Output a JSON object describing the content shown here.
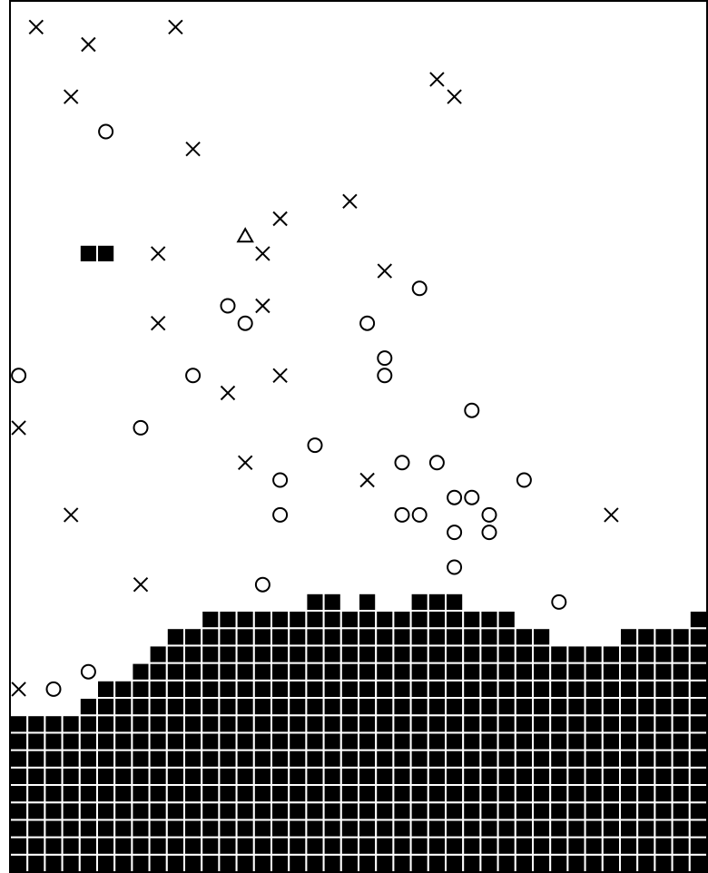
{
  "board": {
    "cols": 40,
    "rows": 50,
    "colors": {
      "background": "#ffffff",
      "ink": "#000000",
      "grid_line": "#ffffff"
    },
    "terrain_column_heights": [
      9,
      9,
      9,
      9,
      10,
      11,
      11,
      12,
      13,
      14,
      14,
      15,
      15,
      15,
      15,
      15,
      15,
      15,
      15,
      15,
      15,
      15,
      15,
      15,
      15,
      15,
      15,
      15,
      15,
      14,
      14,
      13,
      13,
      13,
      13,
      14,
      14,
      14,
      14,
      15
    ],
    "raised_blocks": [
      {
        "col": 17,
        "row": 34
      },
      {
        "col": 18,
        "row": 34
      },
      {
        "col": 20,
        "row": 34
      },
      {
        "col": 23,
        "row": 34
      },
      {
        "col": 24,
        "row": 34
      },
      {
        "col": 25,
        "row": 34
      }
    ],
    "floating_blocks": [
      {
        "col": 4,
        "row": 14
      },
      {
        "col": 5,
        "row": 14
      }
    ],
    "markers": [
      {
        "type": "x",
        "col": 1,
        "row": 1
      },
      {
        "type": "x",
        "col": 4,
        "row": 2
      },
      {
        "type": "x",
        "col": 9,
        "row": 1
      },
      {
        "type": "x",
        "col": 24,
        "row": 4
      },
      {
        "type": "x",
        "col": 25,
        "row": 5
      },
      {
        "type": "x",
        "col": 3,
        "row": 5
      },
      {
        "type": "x",
        "col": 10,
        "row": 8
      },
      {
        "type": "x",
        "col": 19,
        "row": 11
      },
      {
        "type": "x",
        "col": 15,
        "row": 12
      },
      {
        "type": "x",
        "col": 8,
        "row": 14
      },
      {
        "type": "x",
        "col": 14,
        "row": 14
      },
      {
        "type": "x",
        "col": 21,
        "row": 15
      },
      {
        "type": "x",
        "col": 14,
        "row": 17
      },
      {
        "type": "x",
        "col": 8,
        "row": 18
      },
      {
        "type": "x",
        "col": 15,
        "row": 21
      },
      {
        "type": "x",
        "col": 12,
        "row": 22
      },
      {
        "type": "x",
        "col": 0,
        "row": 24
      },
      {
        "type": "x",
        "col": 13,
        "row": 26
      },
      {
        "type": "x",
        "col": 20,
        "row": 27
      },
      {
        "type": "x",
        "col": 3,
        "row": 29
      },
      {
        "type": "x",
        "col": 34,
        "row": 29
      },
      {
        "type": "x",
        "col": 7,
        "row": 33
      },
      {
        "type": "x",
        "col": 0,
        "row": 39
      },
      {
        "type": "o",
        "col": 5,
        "row": 7
      },
      {
        "type": "o",
        "col": 23,
        "row": 16
      },
      {
        "type": "o",
        "col": 12,
        "row": 17
      },
      {
        "type": "o",
        "col": 13,
        "row": 18
      },
      {
        "type": "o",
        "col": 20,
        "row": 18
      },
      {
        "type": "o",
        "col": 21,
        "row": 20
      },
      {
        "type": "o",
        "col": 0,
        "row": 21
      },
      {
        "type": "o",
        "col": 10,
        "row": 21
      },
      {
        "type": "o",
        "col": 21,
        "row": 21
      },
      {
        "type": "o",
        "col": 26,
        "row": 23
      },
      {
        "type": "o",
        "col": 7,
        "row": 24
      },
      {
        "type": "o",
        "col": 17,
        "row": 25
      },
      {
        "type": "o",
        "col": 22,
        "row": 26
      },
      {
        "type": "o",
        "col": 24,
        "row": 26
      },
      {
        "type": "o",
        "col": 15,
        "row": 27
      },
      {
        "type": "o",
        "col": 29,
        "row": 27
      },
      {
        "type": "o",
        "col": 25,
        "row": 28
      },
      {
        "type": "o",
        "col": 26,
        "row": 28
      },
      {
        "type": "o",
        "col": 15,
        "row": 29
      },
      {
        "type": "o",
        "col": 22,
        "row": 29
      },
      {
        "type": "o",
        "col": 23,
        "row": 29
      },
      {
        "type": "o",
        "col": 27,
        "row": 29
      },
      {
        "type": "o",
        "col": 25,
        "row": 30
      },
      {
        "type": "o",
        "col": 27,
        "row": 30
      },
      {
        "type": "o",
        "col": 25,
        "row": 32
      },
      {
        "type": "o",
        "col": 14,
        "row": 33
      },
      {
        "type": "o",
        "col": 31,
        "row": 34
      },
      {
        "type": "o",
        "col": 4,
        "row": 38
      },
      {
        "type": "o",
        "col": 2,
        "row": 39
      },
      {
        "type": "triangle",
        "col": 13,
        "row": 13
      }
    ]
  }
}
